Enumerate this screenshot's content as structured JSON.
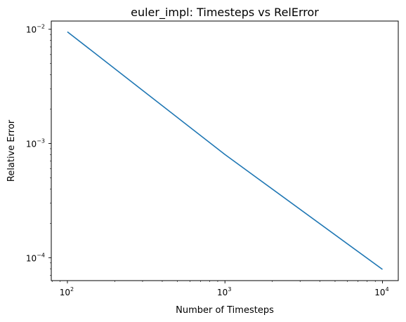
{
  "chart_data": {
    "type": "line",
    "title": "euler_impl: Timesteps vs RelError",
    "xlabel": "Number of Timesteps",
    "ylabel": "Relative Error",
    "xscale": "log",
    "yscale": "log",
    "xlim": [
      79,
      12600
    ],
    "ylim": [
      6.3e-05,
      0.0118
    ],
    "grid": false,
    "series": [
      {
        "color": "#1f77b4",
        "x": [
          100,
          1000,
          10000
        ],
        "y": [
          0.0095,
          0.0008,
          7.9e-05
        ]
      }
    ],
    "x_ticks": [
      {
        "value": 100,
        "base": "10",
        "exp": "2"
      },
      {
        "value": 1000,
        "base": "10",
        "exp": "3"
      },
      {
        "value": 10000,
        "base": "10",
        "exp": "4"
      }
    ],
    "y_ticks": [
      {
        "value": 0.0001,
        "base": "10",
        "exp": "−4"
      },
      {
        "value": 0.001,
        "base": "10",
        "exp": "−3"
      },
      {
        "value": 0.01,
        "base": "10",
        "exp": "−2"
      }
    ]
  }
}
